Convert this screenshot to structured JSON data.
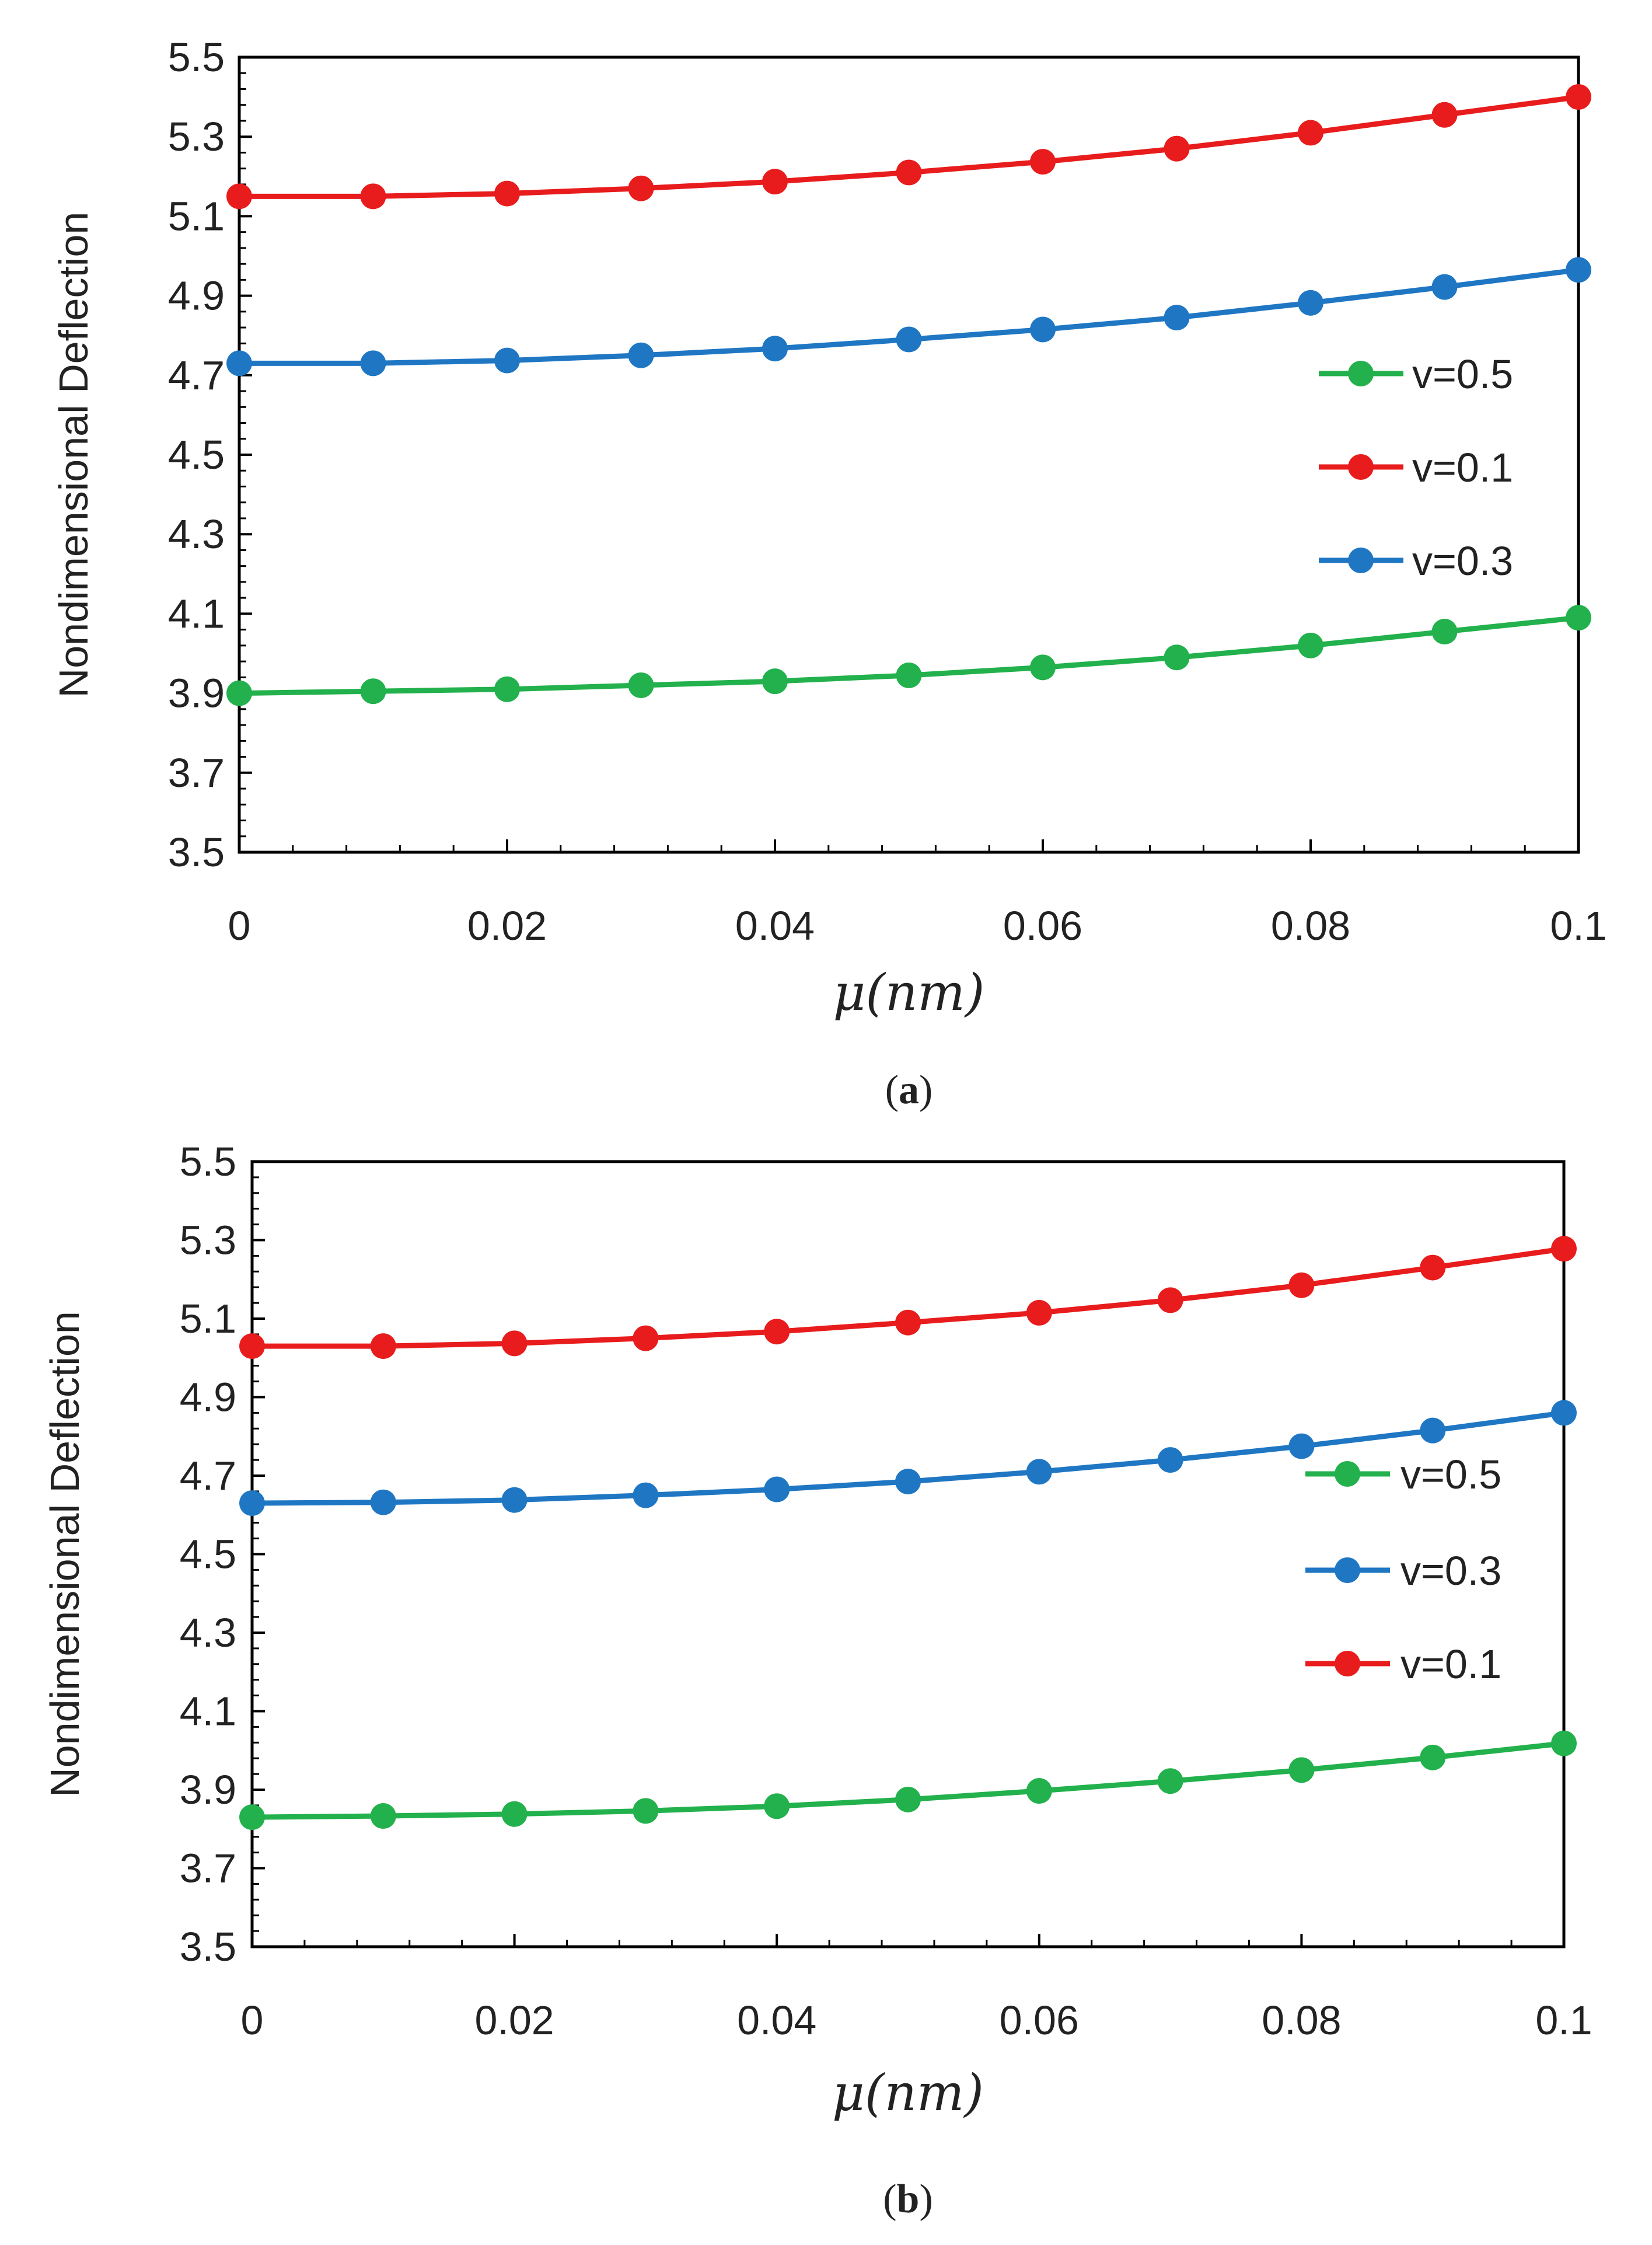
{
  "chart_data": [
    {
      "type": "line",
      "panel": "a",
      "caption_letter": "a",
      "title": "",
      "xlabel": "μ(nm)",
      "ylabel": "Nondimensional Deflection",
      "xlim": [
        0,
        0.1
      ],
      "ylim": [
        3.5,
        5.5
      ],
      "x_ticks": [
        "0",
        "0.02",
        "0.04",
        "0.06",
        "0.08",
        "0.1"
      ],
      "y_ticks": [
        "3.5",
        "3.7",
        "3.9",
        "4.1",
        "4.3",
        "4.5",
        "4.7",
        "4.9",
        "5.1",
        "5.3",
        "5.5"
      ],
      "grid": false,
      "legend_position": "right",
      "x": [
        0,
        0.01,
        0.02,
        0.03,
        0.04,
        0.05,
        0.06,
        0.07,
        0.08,
        0.09,
        0.1
      ],
      "series": [
        {
          "name": "v=0.5",
          "color": "#22b14c",
          "values": [
            3.9,
            3.905,
            3.91,
            3.92,
            3.93,
            3.945,
            3.965,
            3.99,
            4.02,
            4.055,
            4.09
          ]
        },
        {
          "name": "v=0.1",
          "color": "#e81c1c",
          "values": [
            5.15,
            5.15,
            5.157,
            5.17,
            5.187,
            5.21,
            5.237,
            5.27,
            5.31,
            5.355,
            5.4
          ]
        },
        {
          "name": "v=0.3",
          "color": "#1f77c4",
          "values": [
            4.73,
            4.73,
            4.737,
            4.75,
            4.767,
            4.79,
            4.815,
            4.845,
            4.882,
            4.922,
            4.965
          ]
        }
      ]
    },
    {
      "type": "line",
      "panel": "b",
      "caption_letter": "b",
      "title": "",
      "xlabel": "μ(nm)",
      "ylabel": "Nondimensional Deflection",
      "xlim": [
        0,
        0.1
      ],
      "ylim": [
        3.5,
        5.5
      ],
      "x_ticks": [
        "0",
        "0.02",
        "0.04",
        "0.06",
        "0.08",
        "0.1"
      ],
      "y_ticks": [
        "3.5",
        "3.7",
        "3.9",
        "4.1",
        "4.3",
        "4.5",
        "4.7",
        "4.9",
        "5.1",
        "5.3",
        "5.5"
      ],
      "grid": false,
      "legend_position": "right",
      "x": [
        0,
        0.01,
        0.02,
        0.03,
        0.04,
        0.05,
        0.06,
        0.07,
        0.08,
        0.09,
        0.1
      ],
      "series": [
        {
          "name": "v=0.5",
          "color": "#22b14c",
          "values": [
            3.83,
            3.833,
            3.838,
            3.846,
            3.858,
            3.875,
            3.897,
            3.922,
            3.95,
            3.982,
            4.018
          ]
        },
        {
          "name": "v=0.3",
          "color": "#1f77c4",
          "values": [
            4.63,
            4.632,
            4.638,
            4.65,
            4.665,
            4.685,
            4.71,
            4.74,
            4.775,
            4.815,
            4.86
          ]
        },
        {
          "name": "v=0.1",
          "color": "#e81c1c",
          "values": [
            5.03,
            5.03,
            5.037,
            5.05,
            5.067,
            5.09,
            5.115,
            5.147,
            5.185,
            5.23,
            5.278
          ]
        }
      ]
    }
  ]
}
